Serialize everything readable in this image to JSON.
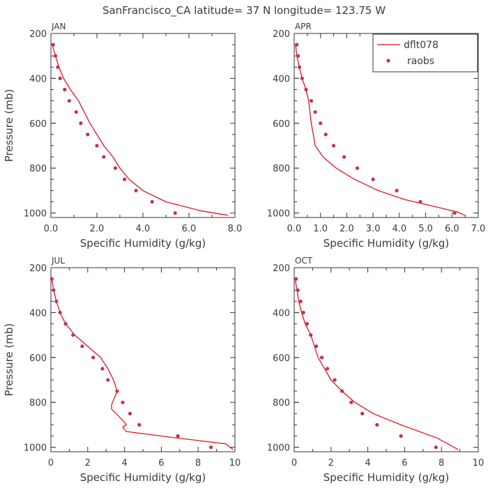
{
  "figure": {
    "title": "SanFrancisco_CA  latitude= 37 N longitude= 123.75 W",
    "ylabel": "Pressure (mb)",
    "xlabel": "Specific Humidity (g/kg)",
    "legend": {
      "model_label": "dflt078",
      "obs_label": "raobs"
    },
    "colors": {
      "line": "#e0141e",
      "dot": "#c0305a",
      "axis": "#333333",
      "text": "#3a3a3a"
    }
  },
  "chart_data": [
    {
      "type": "line",
      "panel": "JAN",
      "xlabel": "Specific Humidity (g/kg)",
      "ylabel": "Pressure (mb)",
      "xlim": [
        0,
        8
      ],
      "ylim": [
        200,
        1020
      ],
      "xticks": [
        0,
        2,
        4,
        6,
        8
      ],
      "xtick_labels": [
        "0.0",
        "2.0",
        "4.0",
        "6.0",
        "8.0"
      ],
      "yticks": [
        200,
        400,
        600,
        800,
        1000
      ],
      "ytick_labels": [
        "200",
        "400",
        "600",
        "800",
        "1000"
      ],
      "series": [
        {
          "name": "dflt078",
          "kind": "line",
          "x": [
            0.05,
            0.2,
            0.35,
            0.55,
            0.85,
            1.2,
            1.7,
            2.3,
            2.7,
            3.0,
            3.4,
            4.0,
            5.0,
            6.5,
            7.7
          ],
          "y": [
            250,
            300,
            350,
            400,
            450,
            500,
            600,
            700,
            750,
            800,
            850,
            900,
            950,
            990,
            1010
          ]
        },
        {
          "name": "raobs",
          "kind": "points",
          "x": [
            0.1,
            0.2,
            0.3,
            0.4,
            0.6,
            0.8,
            1.1,
            1.3,
            1.6,
            2.0,
            2.3,
            2.8,
            3.2,
            3.7,
            4.4,
            5.4
          ],
          "y": [
            250,
            300,
            350,
            400,
            450,
            500,
            550,
            600,
            650,
            700,
            750,
            800,
            850,
            900,
            950,
            1000
          ]
        }
      ]
    },
    {
      "type": "line",
      "panel": "APR",
      "xlabel": "Specific Humidity (g/kg)",
      "ylabel": "Pressure (mb)",
      "xlim": [
        0,
        7
      ],
      "ylim": [
        200,
        1020
      ],
      "xticks": [
        0,
        1,
        2,
        3,
        4,
        5,
        6,
        7
      ],
      "xtick_labels": [
        "0.0",
        "1.0",
        "2.0",
        "3.0",
        "4.0",
        "5.0",
        "6.0",
        "7.0"
      ],
      "yticks": [
        200,
        400,
        600,
        800,
        1000
      ],
      "ytick_labels": [
        "200",
        "400",
        "600",
        "800",
        "1000"
      ],
      "series": [
        {
          "name": "dflt078",
          "kind": "line",
          "x": [
            0.05,
            0.1,
            0.2,
            0.3,
            0.45,
            0.55,
            0.65,
            0.8,
            1.1,
            1.6,
            2.3,
            3.2,
            4.2,
            5.3,
            6.2,
            6.5
          ],
          "y": [
            250,
            300,
            350,
            400,
            450,
            500,
            600,
            700,
            750,
            800,
            850,
            900,
            940,
            970,
            995,
            1010
          ]
        },
        {
          "name": "raobs",
          "kind": "points",
          "x": [
            0.1,
            0.15,
            0.2,
            0.3,
            0.45,
            0.65,
            0.8,
            1.0,
            1.2,
            1.5,
            1.9,
            2.4,
            3.0,
            3.9,
            4.8,
            6.1
          ],
          "y": [
            250,
            300,
            350,
            400,
            450,
            500,
            550,
            600,
            650,
            700,
            750,
            800,
            850,
            900,
            950,
            1000
          ]
        }
      ]
    },
    {
      "type": "line",
      "panel": "JUL",
      "xlabel": "Specific Humidity (g/kg)",
      "ylabel": "Pressure (mb)",
      "xlim": [
        0,
        10
      ],
      "ylim": [
        200,
        1020
      ],
      "xticks": [
        0,
        2,
        4,
        6,
        8,
        10
      ],
      "xtick_labels": [
        "0",
        "2",
        "4",
        "6",
        "8",
        "10"
      ],
      "yticks": [
        200,
        400,
        600,
        800,
        1000
      ],
      "ytick_labels": [
        "200",
        "400",
        "600",
        "800",
        "1000"
      ],
      "series": [
        {
          "name": "dflt078",
          "kind": "line",
          "x": [
            0.05,
            0.15,
            0.3,
            0.5,
            0.8,
            1.3,
            2.0,
            2.7,
            3.1,
            3.4,
            3.6,
            3.3,
            3.3,
            3.9,
            4.1,
            3.9,
            4.1,
            6.5,
            9.5,
            9.9
          ],
          "y": [
            250,
            300,
            350,
            400,
            450,
            500,
            550,
            600,
            650,
            700,
            750,
            810,
            830,
            880,
            900,
            910,
            930,
            955,
            985,
            1010
          ]
        },
        {
          "name": "raobs",
          "kind": "points",
          "x": [
            0.05,
            0.15,
            0.3,
            0.5,
            0.8,
            1.2,
            1.7,
            2.3,
            2.8,
            3.1,
            3.6,
            3.9,
            4.3,
            4.8,
            6.9,
            8.7
          ],
          "y": [
            250,
            300,
            350,
            400,
            450,
            500,
            550,
            600,
            650,
            700,
            750,
            800,
            850,
            900,
            950,
            1000
          ]
        }
      ]
    },
    {
      "type": "line",
      "panel": "OCT",
      "xlabel": "Specific Humidity (g/kg)",
      "ylabel": "Pressure (mb)",
      "xlim": [
        0,
        10
      ],
      "ylim": [
        200,
        1020
      ],
      "xticks": [
        0,
        2,
        4,
        6,
        8,
        10
      ],
      "xtick_labels": [
        "0",
        "2",
        "4",
        "6",
        "8",
        "10"
      ],
      "yticks": [
        200,
        400,
        600,
        800,
        1000
      ],
      "ytick_labels": [
        "200",
        "400",
        "600",
        "800",
        "1000"
      ],
      "series": [
        {
          "name": "dflt078",
          "kind": "line",
          "x": [
            0.05,
            0.15,
            0.25,
            0.4,
            0.6,
            0.9,
            1.3,
            2.0,
            2.6,
            3.3,
            4.3,
            5.8,
            7.8,
            8.9
          ],
          "y": [
            250,
            300,
            350,
            400,
            450,
            500,
            600,
            700,
            750,
            800,
            850,
            900,
            960,
            1010
          ]
        },
        {
          "name": "raobs",
          "kind": "points",
          "x": [
            0.1,
            0.2,
            0.35,
            0.5,
            0.7,
            0.9,
            1.2,
            1.5,
            1.8,
            2.2,
            2.6,
            3.1,
            3.7,
            4.5,
            5.8,
            7.7
          ],
          "y": [
            250,
            300,
            350,
            400,
            450,
            500,
            550,
            600,
            650,
            700,
            750,
            800,
            850,
            900,
            950,
            1000
          ]
        }
      ]
    }
  ]
}
